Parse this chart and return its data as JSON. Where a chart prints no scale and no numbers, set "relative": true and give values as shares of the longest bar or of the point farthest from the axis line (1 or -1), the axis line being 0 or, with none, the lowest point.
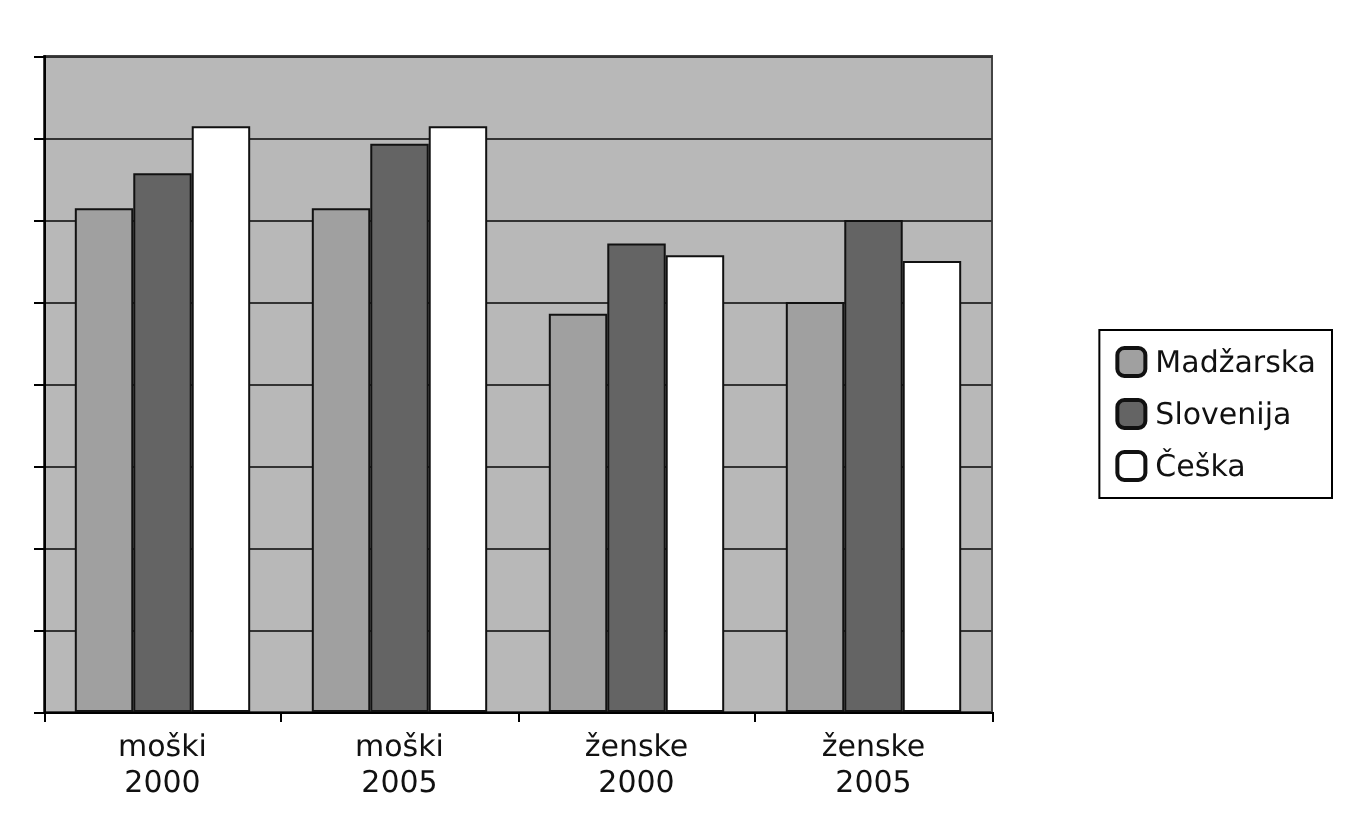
{
  "chart_data": {
    "type": "bar",
    "relative": true,
    "categories": [
      "moški\n2000",
      "moški\n2005",
      "ženske\n2000",
      "ženske\n2005"
    ],
    "series": [
      {
        "name": "Madžarska",
        "color": "#a0a0a0",
        "values": [
          0.86,
          0.86,
          0.68,
          0.7
        ]
      },
      {
        "name": "Slovenija",
        "color": "#646464",
        "values": [
          0.92,
          0.97,
          0.8,
          0.84
        ]
      },
      {
        "name": "Češka",
        "color": "#ffffff",
        "values": [
          1,
          1,
          0.78,
          0.77
        ]
      }
    ],
    "grid": true,
    "legend": "right"
  }
}
